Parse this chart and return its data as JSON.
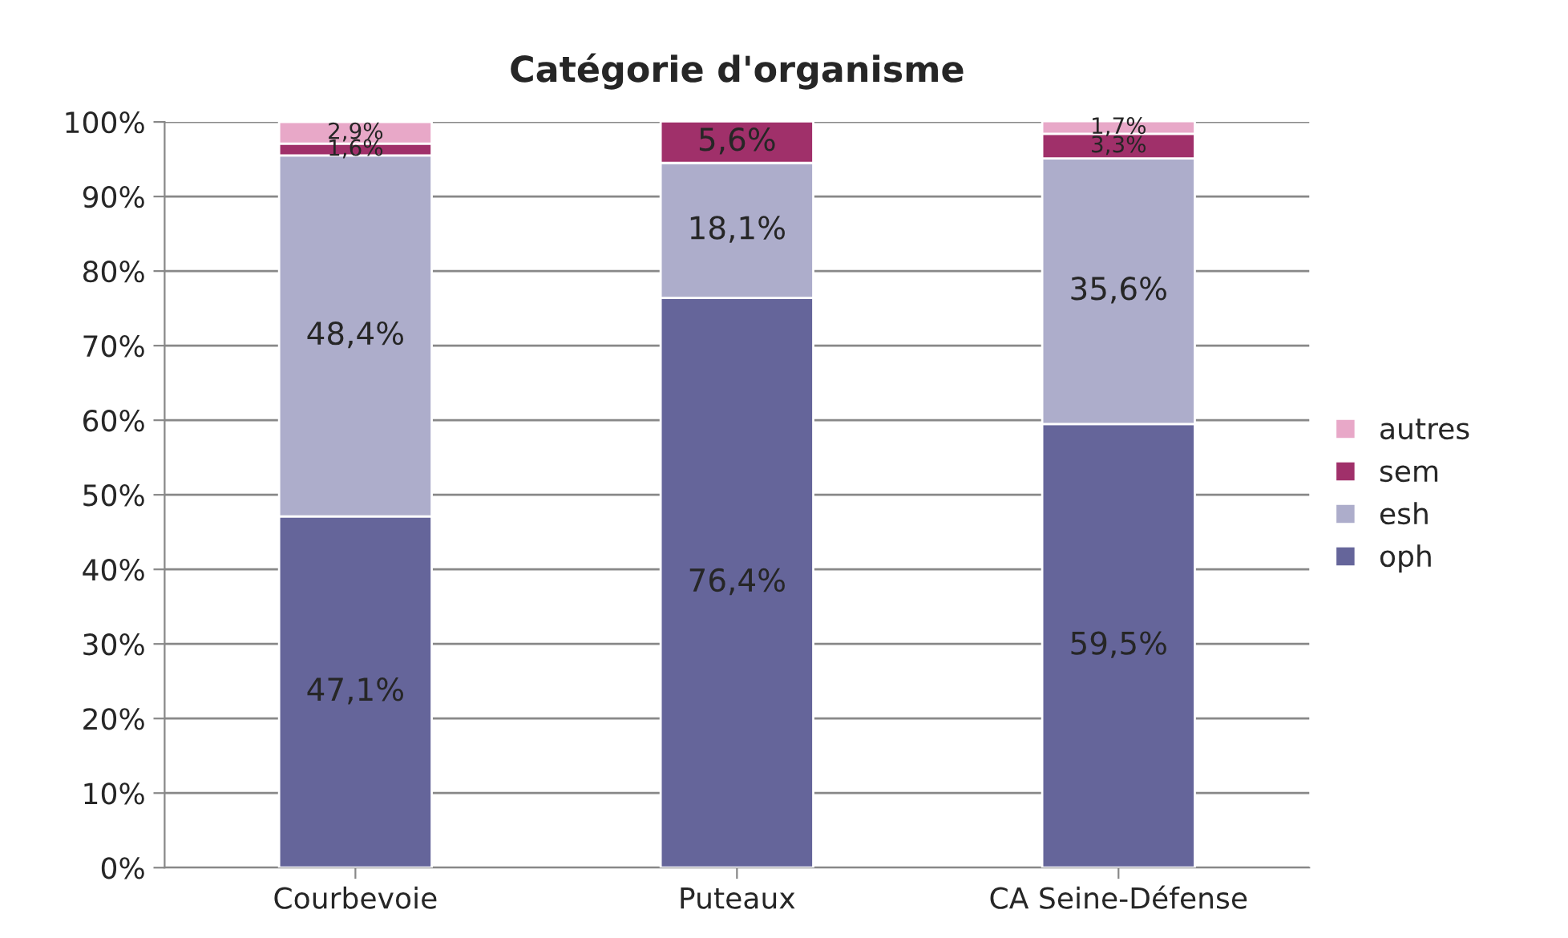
{
  "chart_data": {
    "type": "bar",
    "title": "Catégorie d'organisme",
    "stacked": true,
    "categories": [
      "Courbevoie",
      "Puteaux",
      "CA Seine-Défense"
    ],
    "series": [
      {
        "name": "oph",
        "color": "#65659a",
        "values": [
          47.1,
          76.4,
          59.5
        ],
        "value_labels": [
          "47,1%",
          "76,4%",
          "59,5%"
        ]
      },
      {
        "name": "esh",
        "color": "#adadcb",
        "values": [
          48.4,
          18.1,
          35.6
        ],
        "value_labels": [
          "48,4%",
          "18,1%",
          "35,6%"
        ]
      },
      {
        "name": "sem",
        "color": "#a0306a",
        "values": [
          1.6,
          5.6,
          3.3
        ],
        "value_labels": [
          "1,6%",
          "5,6%",
          "3,3%"
        ]
      },
      {
        "name": "autres",
        "color": "#e8a8c8",
        "values": [
          2.9,
          null,
          1.7
        ],
        "value_labels": [
          "2,9%",
          null,
          "1,7%"
        ]
      }
    ],
    "ylim": [
      0,
      100
    ],
    "yticks": [
      {
        "value": 0,
        "label": "0%"
      },
      {
        "value": 10,
        "label": "10%"
      },
      {
        "value": 20,
        "label": "20%"
      },
      {
        "value": 30,
        "label": "30%"
      },
      {
        "value": 40,
        "label": "40%"
      },
      {
        "value": 50,
        "label": "50%"
      },
      {
        "value": 60,
        "label": "60%"
      },
      {
        "value": 70,
        "label": "70%"
      },
      {
        "value": 80,
        "label": "80%"
      },
      {
        "value": 90,
        "label": "90%"
      },
      {
        "value": 100,
        "label": "100%"
      }
    ],
    "grid": "y",
    "legend": "right"
  }
}
